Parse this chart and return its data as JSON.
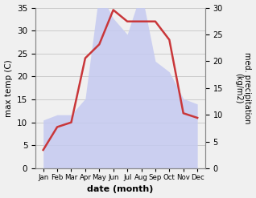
{
  "months": [
    "Jan",
    "Feb",
    "Mar",
    "Apr",
    "May",
    "Jun",
    "Jul",
    "Aug",
    "Sep",
    "Oct",
    "Nov",
    "Dec"
  ],
  "temperature": [
    4,
    9,
    10,
    24,
    27,
    34.5,
    32,
    32,
    32,
    28,
    12,
    11
  ],
  "precipitation": [
    9,
    10,
    10,
    13,
    33,
    28,
    25,
    33,
    20,
    18,
    13,
    12
  ],
  "temp_color": "#c9373a",
  "precip_fill_color": "#c5caf0",
  "xlabel": "date (month)",
  "ylabel_left": "max temp (C)",
  "ylabel_right": "med. precipitation\n(kg/m2)",
  "ylim_left": [
    0,
    35
  ],
  "ylim_right": [
    0,
    30
  ],
  "yticks_left": [
    0,
    5,
    10,
    15,
    20,
    25,
    30,
    35
  ],
  "yticks_right": [
    0,
    5,
    10,
    15,
    20,
    25,
    30
  ],
  "line_width": 1.8,
  "figsize": [
    3.18,
    2.47
  ],
  "dpi": 100
}
